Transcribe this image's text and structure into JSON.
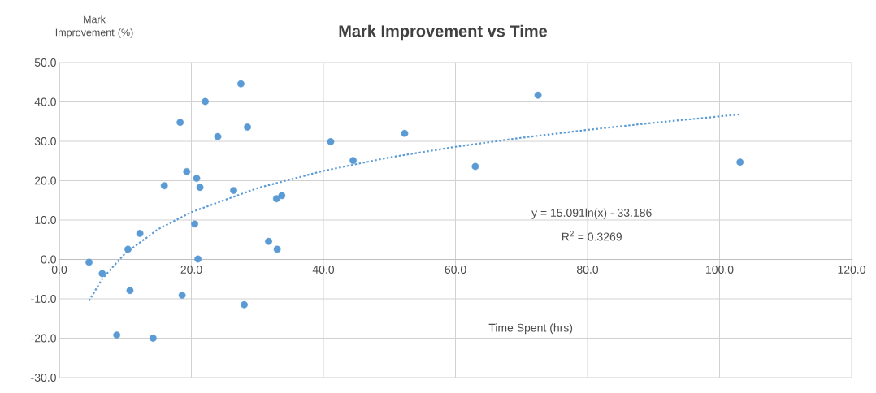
{
  "chart_data": {
    "type": "scatter",
    "title": "Mark Improvement vs Time",
    "xlabel": "Time Spent (hrs)",
    "ylabel": "Mark Improvement (%)",
    "annotations": [
      "y = 15.091ln(x) - 33.186",
      "R$^{2}$ = 0.3269"
    ],
    "series": [
      {
        "color": "#5b9bd5",
        "marker": "circle",
        "x": [
          4.5,
          6.5,
          10.4,
          10.7,
          8.7,
          12.2,
          14.2,
          15.9,
          18.3,
          18.6,
          19.3,
          20.5,
          20.8,
          21.0,
          21.3,
          22.1,
          24.0,
          26.4,
          27.5,
          28.0,
          28.5,
          31.7,
          32.9,
          33.0,
          33.7,
          41.1,
          44.5,
          52.3,
          63.0,
          72.5,
          103.1
        ],
        "values": [
          -0.7,
          -3.6,
          2.6,
          -7.9,
          -19.2,
          6.6,
          -20.0,
          18.7,
          34.8,
          -9.1,
          22.3,
          9.0,
          20.6,
          0.1,
          18.3,
          40.1,
          31.2,
          17.5,
          44.6,
          -11.5,
          33.6,
          4.6,
          15.4,
          2.6,
          16.2,
          29.9,
          25.1,
          32.0,
          23.6,
          41.7,
          24.7
        ]
      },
      {
        "type": "line",
        "color": "#5b9bd5",
        "line_style": "dotted",
        "marker": "none",
        "x": [
          4.5,
          6.5,
          10,
          15,
          20,
          30,
          40,
          50,
          60,
          70,
          80,
          90,
          103
        ],
        "values": [
          -10.5,
          -4.9,
          1.6,
          7.7,
          12.0,
          18.1,
          22.5,
          25.9,
          28.6,
          30.9,
          32.9,
          34.7,
          36.8
        ]
      }
    ],
    "xlim": [
      0,
      120
    ],
    "ylim": [
      -30,
      50
    ],
    "xticks": [
      {
        "value": 0,
        "label": "0.0"
      },
      {
        "value": 20,
        "label": "20.0"
      },
      {
        "value": 40,
        "label": "40.0"
      },
      {
        "value": 60,
        "label": "60.0"
      },
      {
        "value": 80,
        "label": "80.0"
      },
      {
        "value": 100,
        "label": "100.0"
      },
      {
        "value": 120,
        "label": "120.0"
      }
    ],
    "yticks": [
      {
        "value": -30,
        "label": "-30.0"
      },
      {
        "value": -20,
        "label": "-20.0"
      },
      {
        "value": -10,
        "label": "-10.0"
      },
      {
        "value": 0,
        "label": "0.0"
      },
      {
        "value": 10,
        "label": "10.0"
      },
      {
        "value": 20,
        "label": "20.0"
      },
      {
        "value": 30,
        "label": "30.0"
      },
      {
        "value": 40,
        "label": "40.0"
      },
      {
        "value": 50,
        "label": "50.0"
      }
    ],
    "grid": true
  }
}
